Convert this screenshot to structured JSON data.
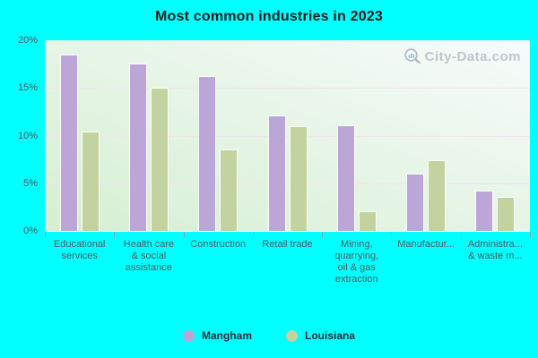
{
  "title": "Most common industries in 2023",
  "watermark": "City-Data.com",
  "colors": {
    "background": "#00ffff",
    "title_text": "#1b1b1b",
    "axis_text": "#53585c",
    "tick": "#8aa0a8",
    "gridline": "#f2e4ec",
    "plot_gradient_start": "#d5efd2",
    "plot_gradient_end": "#f7fbfb",
    "legend_text": "#2e2e34",
    "watermark_text": "#b4bdc3",
    "mangham": "#bba6d8",
    "louisiana": "#c2d39f"
  },
  "chart_data": {
    "type": "bar",
    "title": "Most common industries in 2023",
    "categories": [
      "Educational\nservices",
      "Health care\n& social\nassistance",
      "Construction",
      "Retail trade",
      "Mining,\nquarrying,\noil & gas\nextraction",
      "Manufactur...",
      "Administra...\n& waste m..."
    ],
    "series": [
      {
        "name": "Mangham",
        "color": "#bba6d8",
        "values": [
          18.5,
          17.6,
          16.2,
          12.1,
          11.1,
          6.0,
          4.2
        ]
      },
      {
        "name": "Louisiana",
        "color": "#c2d39f",
        "values": [
          10.4,
          15.0,
          8.5,
          11.0,
          2.1,
          7.4,
          3.6
        ]
      }
    ],
    "ylabel": "",
    "xlabel": "",
    "ylim": [
      0,
      20
    ],
    "yticks": [
      {
        "value": 0,
        "label": "0%"
      },
      {
        "value": 5,
        "label": "5%"
      },
      {
        "value": 10,
        "label": "10%"
      },
      {
        "value": 15,
        "label": "15%"
      },
      {
        "value": 20,
        "label": "20%"
      }
    ],
    "grid": "horizontal",
    "legend_position": "bottom"
  }
}
